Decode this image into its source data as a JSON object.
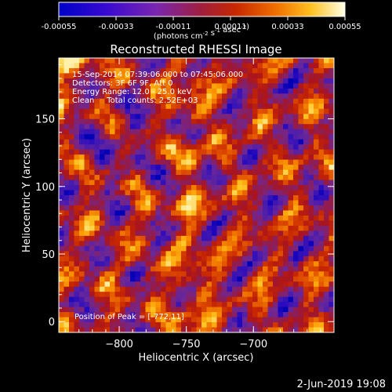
{
  "chart_data": {
    "type": "heatmap",
    "title": "Reconstructed RHESSI Image",
    "xlabel": "Heliocentric X (arcsec)",
    "ylabel": "Heliocentric Y (arcsec)",
    "xlim": [
      -845,
      -640
    ],
    "ylim": [
      -8,
      195
    ],
    "x_ticks": [
      -800,
      -750,
      -700
    ],
    "y_ticks": [
      0,
      50,
      100,
      150
    ],
    "colorbar": {
      "ticks": [
        "-0.00055",
        "-0.00033",
        "-0.00011",
        "0.00011",
        "0.00033",
        "0.00055"
      ],
      "unit_prefix": "(photons cm",
      "unit_exp1": "-2",
      "unit_mid": " s",
      "unit_exp2": "-1",
      "unit_mid2": " asec",
      "unit_exp3": "-2",
      "unit_suffix": ")",
      "colors": [
        "#0000c8",
        "#5a14c8",
        "#8c28a0",
        "#b41e1e",
        "#e65000",
        "#ffb400",
        "#ffffdc"
      ]
    },
    "annotations": {
      "time_range": "15-Sep-2014 07:39:06.000 to 07:45:06.000",
      "detectors": "Detectors: 3F 6F 9F, Att 0",
      "energy_range": "Energy Range: 12.0 - 25.0 keV",
      "method": "Clean     Total counts: 2.52E+03",
      "peak": "Position of Peak = [-772,11]"
    },
    "peak": {
      "x": -772,
      "y": 11
    }
  },
  "footer": {
    "date": "2-Jun-2019 19:08"
  }
}
